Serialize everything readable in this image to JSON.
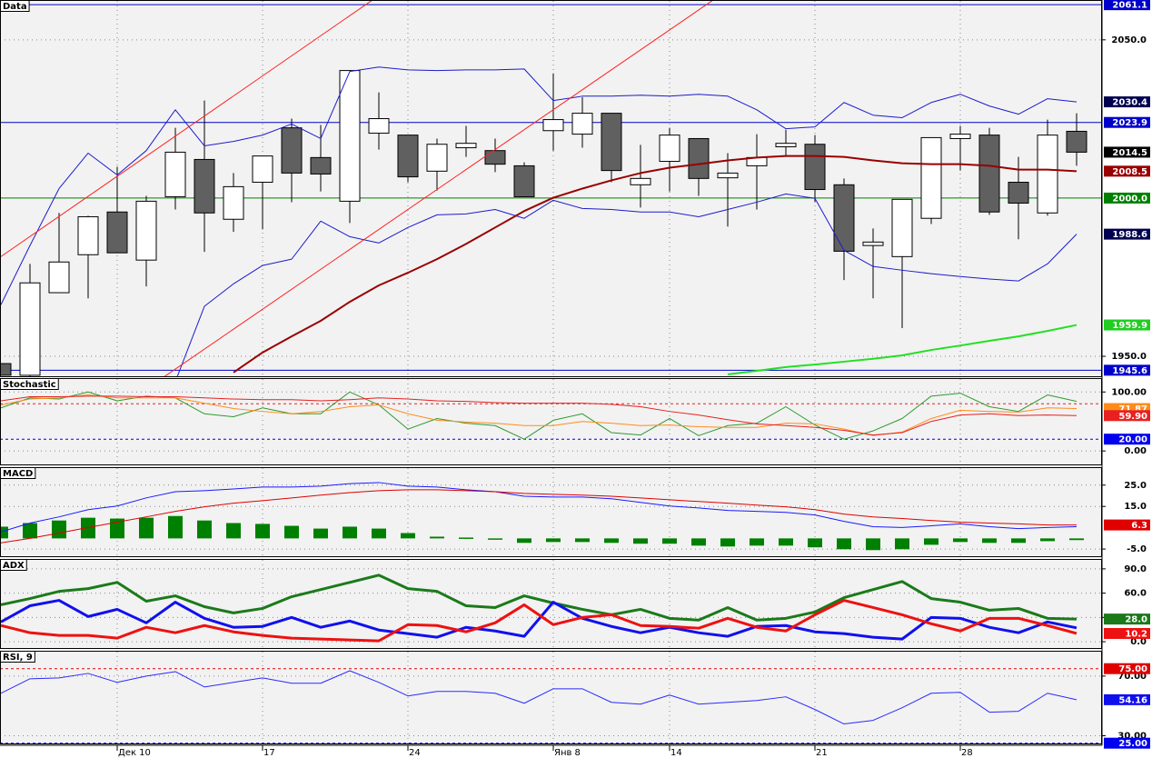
{
  "chart_data": [
    {
      "type": "candlestick",
      "title": "Data",
      "categories": [
        null,
        null,
        null,
        null,
        "Дек 10",
        null,
        null,
        null,
        null,
        "17",
        null,
        null,
        null,
        null,
        "24",
        null,
        null,
        null,
        null,
        "Янв 8",
        null,
        null,
        null,
        "14",
        null,
        null,
        null,
        null,
        "21",
        null,
        null,
        null,
        null,
        "28",
        null,
        null,
        null,
        null
      ],
      "open": [
        1947.7,
        1944.0,
        1970.1,
        1982.1,
        1995.6,
        1980.4,
        2000.4,
        2012.2,
        1993.3,
        2005.0,
        2022.2,
        2012.8,
        1999.0,
        2020.5,
        2019.9,
        2008.5,
        2015.9,
        2015.0,
        2010.2,
        2021.3,
        2020.2,
        2026.8,
        2004.2,
        2011.6,
        2018.8,
        2006.4,
        2010.2,
        2016.2,
        2017.0,
        2004.2,
        1985.0,
        1981.5,
        1993.6,
        2018.8,
        2019.9,
        2005.0,
        1995.3,
        2021.1
      ],
      "high": [
        1947.7,
        1979.2,
        1995.3,
        1994.4,
        2009.9,
        2000.7,
        2022.2,
        2030.8,
        2007.9,
        2013.3,
        2025.1,
        2023.1,
        2040.3,
        2033.4,
        2019.9,
        2018.8,
        2022.8,
        2018.8,
        2011.3,
        2039.4,
        2031.9,
        2026.8,
        2016.8,
        2022.2,
        2018.8,
        2014.2,
        2020.2,
        2021.6,
        2019.9,
        2006.2,
        1990.4,
        1999.6,
        2019.1,
        2022.8,
        2022.2,
        2013.0,
        2024.8,
        2026.8
      ],
      "low": [
        1944.0,
        1943.5,
        1970.1,
        1968.3,
        1982.7,
        1972.1,
        1996.4,
        1983.0,
        1989.3,
        1990.1,
        1998.7,
        2002.1,
        1992.1,
        2015.3,
        2005.0,
        2002.4,
        2013.0,
        2008.2,
        2000.4,
        2015.0,
        2015.9,
        2005.0,
        1997.0,
        2002.1,
        2000.7,
        1991.0,
        1996.4,
        2013.0,
        1998.7,
        1974.1,
        1968.3,
        1958.9,
        1991.8,
        2008.7,
        1994.7,
        1987.0,
        1994.4,
        2010.2
      ],
      "close": [
        1944.0,
        1973.2,
        1979.8,
        1994.1,
        1982.7,
        1999.0,
        2014.5,
        1995.3,
        2003.6,
        2013.3,
        2007.9,
        2007.6,
        2040.3,
        2025.1,
        2006.7,
        2017.0,
        2017.3,
        2010.7,
        2000.4,
        2024.8,
        2026.8,
        2008.7,
        2006.2,
        2019.9,
        2006.2,
        2007.9,
        2012.8,
        2017.3,
        2002.7,
        1983.2,
        1986.1,
        1999.6,
        2019.1,
        2020.2,
        1995.6,
        1998.4,
        2019.9,
        2014.5
      ],
      "close_label": "2014.5",
      "series": [
        {
          "color": "#1c1ccc",
          "values": [
            1966.3,
            1985.0,
            2003.0,
            2014.2,
            2007.3,
            2015.0,
            2027.9,
            2016.5,
            2017.9,
            2019.9,
            2023.4,
            2018.8,
            2040.0,
            2041.4,
            2040.5,
            2040.3,
            2040.5,
            2040.5,
            2040.8,
            2030.8,
            2032.2,
            2032.2,
            2032.5,
            2032.2,
            2032.8,
            2032.2,
            2027.9,
            2021.9,
            2022.5,
            2030.2,
            2026.2,
            2025.4,
            2030.2,
            2032.8,
            2029.1,
            2026.5,
            2031.4,
            2030.4
          ],
          "last_label": "2030.4",
          "tag_color": "#000050"
        },
        {
          "color": "#1c1ccc",
          "values": [
            null,
            null,
            null,
            null,
            null,
            null,
            1942.0,
            1965.8,
            1972.9,
            1978.7,
            1980.7,
            1992.7,
            1987.8,
            1985.8,
            1990.7,
            1994.7,
            1995.0,
            1996.4,
            1993.6,
            1999.3,
            1996.7,
            1996.4,
            1995.6,
            1995.6,
            1994.1,
            1996.4,
            1998.7,
            2001.3,
            1999.9,
            1983.5,
            1978.4,
            1977.2,
            1976.1,
            1975.2,
            1974.4,
            1973.8,
            1979.2,
            1988.6
          ],
          "last_label": "1988.6",
          "tag_color": "#000050"
        },
        {
          "color": "#990000",
          "values": [
            null,
            null,
            null,
            null,
            null,
            null,
            null,
            null,
            1944.9,
            1951.2,
            1956.3,
            1961.2,
            1967.2,
            1972.4,
            1976.4,
            1980.7,
            1985.5,
            1990.7,
            1995.9,
            2000.1,
            2003.0,
            2005.6,
            2007.9,
            2009.6,
            2010.7,
            2011.9,
            2012.8,
            2013.3,
            2013.3,
            2013.0,
            2011.9,
            2011.0,
            2010.7,
            2010.7,
            2010.2,
            2009.0,
            2009.0,
            2008.5
          ],
          "last_label": "2008.5",
          "tag_color": "#990000"
        },
        {
          "color": "#22e022",
          "values": [
            null,
            null,
            null,
            null,
            null,
            null,
            null,
            null,
            null,
            null,
            null,
            null,
            null,
            null,
            null,
            null,
            null,
            null,
            null,
            null,
            null,
            null,
            null,
            null,
            null,
            1944.3,
            1945.4,
            1946.6,
            1947.4,
            1948.3,
            1949.2,
            1950.3,
            1952.0,
            1953.4,
            1954.9,
            1956.3,
            1958.0,
            1959.9
          ],
          "last_label": "1959.9",
          "tag_color": "#22cc22"
        }
      ],
      "levels": [
        {
          "value": 2061.1,
          "label": "2061.1",
          "color": "#0000cc"
        },
        {
          "value": 2023.9,
          "label": "2023.9",
          "color": "#0000cc"
        },
        {
          "value": 2000.0,
          "label": "2000.0",
          "color": "#008000"
        },
        {
          "value": 1945.6,
          "label": "1945.6",
          "color": "#0000cc"
        }
      ],
      "ylim": [
        1943.4,
        2062.3
      ],
      "yticks": [
        {
          "value": 2050,
          "label": "2050.0"
        },
        {
          "value": 1950,
          "label": "1950.0"
        }
      ]
    },
    {
      "type": "line",
      "title": "Stochastic",
      "series": [
        {
          "color": "#2e9a2e",
          "values": [
            73,
            90,
            88,
            100,
            85,
            93,
            90,
            63,
            58,
            73,
            63,
            63,
            100,
            78,
            37,
            55,
            47,
            43,
            20,
            52,
            63,
            31,
            27,
            55,
            26,
            43,
            47,
            75,
            44,
            20,
            34,
            55,
            93,
            98,
            75,
            67,
            95,
            84
          ]
        },
        {
          "color": "#ff8c1a",
          "values": [
            78,
            88,
            90,
            95,
            90,
            90,
            90,
            81,
            72,
            67,
            63,
            67,
            75,
            78,
            63,
            52,
            49,
            47,
            43,
            43,
            50,
            47,
            43,
            44,
            41,
            40,
            40,
            47,
            46,
            37,
            26,
            32,
            55,
            69,
            67,
            66,
            73,
            71.87
          ],
          "last_label": "71.87",
          "tag_color": "#ff8c1a"
        },
        {
          "color": "#e82020",
          "values": [
            85,
            92,
            92,
            93,
            93,
            92,
            92,
            90,
            88,
            87,
            87,
            85,
            87,
            90,
            88,
            85,
            84,
            82,
            81,
            81,
            81,
            79,
            75,
            67,
            61,
            53,
            46,
            43,
            40,
            35,
            27,
            31,
            50,
            61,
            63,
            60,
            61,
            59.9
          ],
          "last_label": "59.90",
          "tag_color": "#e82020"
        }
      ],
      "levels": [
        {
          "value": 80,
          "color": "#e82020"
        },
        {
          "value": 20,
          "label": "20.00",
          "color": "#0000ee"
        }
      ],
      "ylim": [
        -24.4,
        122
      ],
      "yticks": [
        {
          "value": 100,
          "label": "100.00"
        },
        {
          "value": 0,
          "label": "0.00"
        }
      ]
    },
    {
      "type": "line",
      "title": "MACD",
      "series": [
        {
          "type": "bar",
          "color": "#008000",
          "values": [
            5.5,
            7.2,
            8.4,
            9.7,
            9.3,
            9.7,
            10.5,
            8.4,
            7.2,
            6.8,
            5.9,
            4.6,
            5.5,
            4.6,
            2.5,
            0.8,
            0.4,
            -0.5,
            -2.1,
            -1.7,
            -1.7,
            -2.1,
            -2.5,
            -2.5,
            -3.4,
            -3.8,
            -3.4,
            -3.4,
            -4.2,
            -5.1,
            -5.5,
            -5.1,
            -3.0,
            -1.7,
            -2.1,
            -2.1,
            -1.3,
            -0.8
          ]
        },
        {
          "color": "#1a1aff",
          "values": [
            3.0,
            7.2,
            10.1,
            13.5,
            15.2,
            19.0,
            21.9,
            22.4,
            23.2,
            24.1,
            24.1,
            24.5,
            25.7,
            26.2,
            24.5,
            24.1,
            22.8,
            21.9,
            19.8,
            19.4,
            19.4,
            18.6,
            16.9,
            15.2,
            14.3,
            13.1,
            12.7,
            12.2,
            11.0,
            8.0,
            5.5,
            5.1,
            5.9,
            6.8,
            5.5,
            4.6,
            5.1,
            5.5
          ]
        },
        {
          "color": "#e00000",
          "values": [
            -2.1,
            0,
            2.5,
            5.1,
            7.6,
            10.1,
            12.7,
            14.8,
            16.5,
            17.7,
            19.0,
            20.3,
            21.5,
            22.4,
            22.8,
            22.8,
            22.4,
            21.9,
            21.1,
            20.7,
            20.3,
            19.8,
            19.0,
            18.1,
            17.3,
            16.5,
            15.6,
            14.8,
            13.5,
            11.4,
            10.1,
            9.3,
            8.4,
            7.6,
            7.2,
            6.8,
            6.3,
            6.3
          ],
          "last_label": "6.3",
          "tag_color": "#e00000"
        }
      ],
      "ylim": [
        -8.8,
        33
      ],
      "yticks": [
        {
          "value": 25,
          "label": "25.0"
        },
        {
          "value": 15,
          "label": "15.0"
        },
        {
          "value": -5,
          "label": "-5.0"
        }
      ]
    },
    {
      "type": "line",
      "title": "ADX",
      "series": [
        {
          "color": "#1a7a1a",
          "values": [
            45.6,
            53.3,
            62.2,
            65.6,
            73.3,
            50,
            56.7,
            43.3,
            35.6,
            41.1,
            55.6,
            64.4,
            73.3,
            82.2,
            65.6,
            62.2,
            44.4,
            42.2,
            56.7,
            47.8,
            40,
            33.3,
            40,
            28.9,
            26.7,
            42.2,
            26.7,
            28.9,
            36.7,
            54.4,
            64.4,
            74.4,
            53.3,
            48.9,
            38.9,
            41.1,
            28.9,
            28.0
          ],
          "last_label": "28.0",
          "tag_color": "#1a7a1a"
        },
        {
          "color": "#1010ee",
          "values": [
            24.4,
            44.4,
            51.1,
            31.1,
            40,
            23.3,
            48.9,
            28.9,
            17.8,
            18.9,
            30,
            17.8,
            25.6,
            14.4,
            10,
            5.6,
            17.8,
            13.3,
            6.7,
            48.9,
            28.9,
            18.9,
            11.1,
            17.8,
            11.1,
            6.7,
            18.9,
            20,
            12.2,
            10,
            5.6,
            3.3,
            30,
            28.9,
            17.8,
            11.1,
            24.4,
            17.1
          ]
        },
        {
          "color": "#ee1111",
          "values": [
            20,
            11.1,
            7.8,
            7.8,
            4.4,
            17.8,
            11.1,
            20,
            12.2,
            7.8,
            4.4,
            3.3,
            2.2,
            1.1,
            21.1,
            20,
            12.2,
            23.3,
            45.6,
            21.1,
            30,
            33.3,
            20,
            18.9,
            16.7,
            28.9,
            17.8,
            13.3,
            33.3,
            51.1,
            42.2,
            33.3,
            22.2,
            13.3,
            28.9,
            28.9,
            20,
            10.2
          ],
          "last_label": "10.2",
          "tag_color": "#ee1111"
        }
      ],
      "ylim": [
        -8.9,
        101.1
      ],
      "yticks": [
        {
          "value": 90,
          "label": "90.0"
        },
        {
          "value": 60,
          "label": "60.0"
        },
        {
          "value": 30,
          "label": "30.0"
        },
        {
          "value": 0,
          "label": "0.0"
        }
      ]
    },
    {
      "type": "line",
      "title": "RSI, 9",
      "series": [
        {
          "color": "#2a2aff",
          "values": [
            58.5,
            68.2,
            68.8,
            71.8,
            65.8,
            70,
            73,
            62.7,
            65.8,
            68.8,
            65.2,
            65.2,
            73.6,
            65.8,
            56.7,
            59.7,
            59.7,
            58.5,
            51.8,
            61.5,
            61.5,
            52.4,
            51.2,
            57.3,
            51.2,
            52.4,
            53.6,
            56.1,
            47.6,
            37.9,
            40.3,
            48.8,
            58.5,
            59.1,
            45.8,
            46.4,
            58.5,
            54.16
          ],
          "last_label": "54.16",
          "tag_color": "#1010ee"
        }
      ],
      "levels": [
        {
          "value": 75,
          "label": "75.00",
          "color": "#e00000"
        },
        {
          "value": 25,
          "label": "25.00",
          "color": "#0000ee"
        }
      ],
      "ylim": [
        24.2,
        86.4
      ],
      "yticks": [
        {
          "value": 70,
          "label": "70.00"
        },
        {
          "value": 30,
          "label": "30.00"
        }
      ]
    }
  ]
}
